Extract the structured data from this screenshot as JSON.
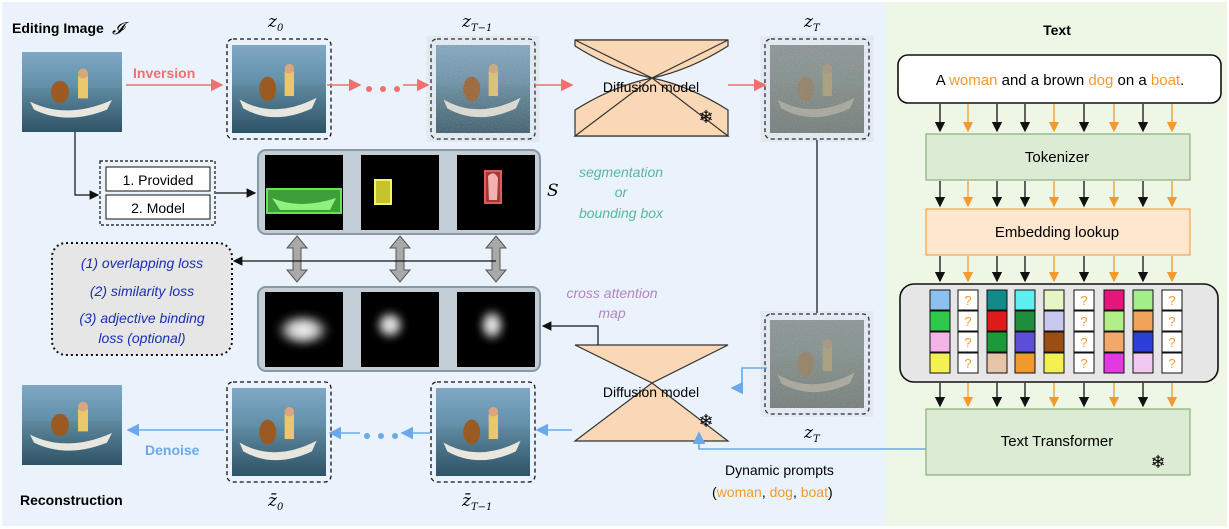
{
  "left_panel": {
    "editing_label": "Editing Image",
    "editing_symbol": "𝓘",
    "inversion_label": "Inversion",
    "denoise_label": "Denoise",
    "reconstruction_label": "Reconstruction",
    "latents_top": [
      "z",
      "z",
      "z"
    ],
    "latents_top_sub": [
      "0",
      "T−1",
      "T"
    ],
    "latents_bottom": [
      "z̄",
      "z̄",
      "z"
    ],
    "latents_bottom_sub": [
      "0",
      "T−1",
      "T"
    ],
    "diffusion_label": "Diffusion model",
    "frozen_icon": "snowflake-icon",
    "source_options": [
      "1. Provided",
      "2. Model"
    ],
    "s_symbol": "S",
    "segmentation_text": [
      "segmentation",
      "or",
      "bounding box"
    ],
    "cross_attention_text": [
      "cross attention",
      "map"
    ],
    "losses": [
      "(1) overlapping loss",
      "(2) similarity loss",
      "(3) adjective binding",
      "loss (optional)"
    ],
    "dynamic_prompts_label": "Dynamic prompts",
    "dynamic_words": [
      "woman",
      "dog",
      "boat"
    ],
    "dynamic_open": "(",
    "dynamic_sep1": ", ",
    "dynamic_sep2": ", ",
    "dynamic_close": ")",
    "colors": {
      "panel_bg": "#eaf3fb",
      "inversion": "#f07070",
      "denoise": "#6aa9e9",
      "diffusion_fill": "#fad7b5",
      "seg_text": "#5ab69a",
      "ca_text": "#b383c4",
      "loss_text": "#1a2fb0"
    }
  },
  "right_panel": {
    "title": "Text",
    "sentence": [
      "A ",
      "woman",
      " and a brown ",
      "dog",
      " on a ",
      "boat",
      "."
    ],
    "tokenizer_label": "Tokenizer",
    "embedding_label": "Embedding lookup",
    "unknown_glyph": "?",
    "transformer_label": "Text Transformer",
    "colors": {
      "panel_bg": "#eef7e6",
      "accent": "#f29a2e",
      "box_green": "#dcebd3",
      "box_orange": "#fde7cf"
    }
  }
}
